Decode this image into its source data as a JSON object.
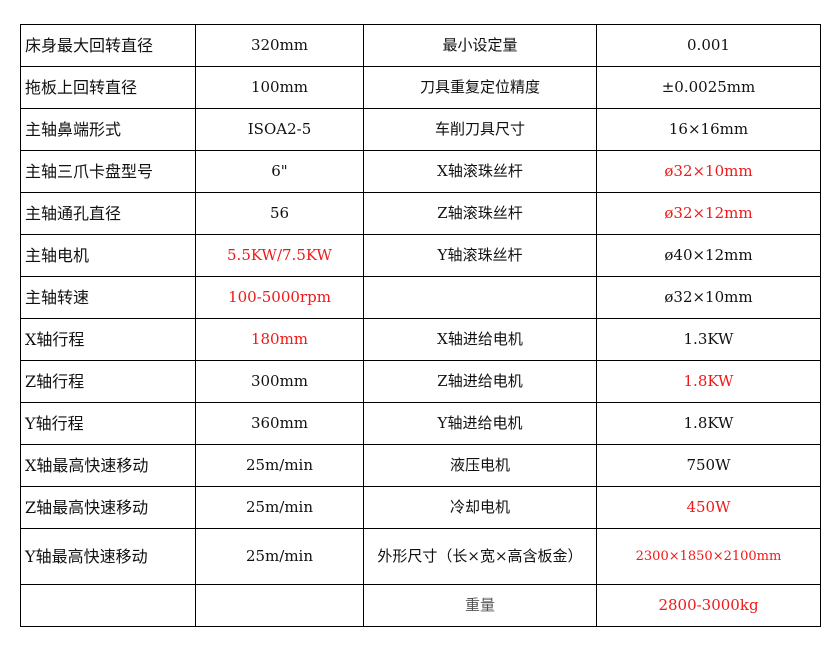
{
  "colors": {
    "highlight": "#f01818",
    "text": "#111111"
  },
  "rows": [
    {
      "c": [
        "床身最大回转直径",
        "320mm",
        "最小设定量",
        "0.001"
      ],
      "red": []
    },
    {
      "c": [
        "拖板上回转直径",
        "100mm",
        "刀具重复定位精度",
        "±0.0025mm"
      ],
      "red": []
    },
    {
      "c": [
        "主轴鼻端形式",
        "ISOA2-5",
        "车削刀具尺寸",
        "16×16mm"
      ],
      "red": []
    },
    {
      "c": [
        "主轴三爪卡盘型号",
        "6\"",
        "X轴滚珠丝杆",
        "ø32×10mm"
      ],
      "red": [
        3
      ]
    },
    {
      "c": [
        "主轴通孔直径",
        "56",
        "Z轴滚珠丝杆",
        "ø32×12mm"
      ],
      "red": [
        3
      ]
    },
    {
      "c": [
        "主轴电机",
        "5.5KW/7.5KW",
        "Y轴滚珠丝杆",
        "ø40×12mm"
      ],
      "red": [
        1
      ]
    },
    {
      "c": [
        "主轴转速",
        "100-5000rpm",
        "",
        "ø32×10mm"
      ],
      "red": [
        1
      ]
    },
    {
      "c": [
        "X轴行程",
        "180mm",
        "X轴进给电机",
        "1.3KW"
      ],
      "red": [
        1
      ]
    },
    {
      "c": [
        "Z轴行程",
        "300mm",
        "Z轴进给电机",
        "1.8KW"
      ],
      "red": [
        3
      ]
    },
    {
      "c": [
        "Y轴行程",
        "360mm",
        "Y轴进给电机",
        "1.8KW"
      ],
      "red": []
    },
    {
      "c": [
        "X轴最高快速移动",
        "25m/min",
        "液压电机",
        "750W"
      ],
      "red": []
    },
    {
      "c": [
        "Z轴最高快速移动",
        "25m/min",
        "冷却电机",
        "450W"
      ],
      "red": [
        3
      ]
    },
    {
      "c": [
        "Y轴最高快速移动",
        "25m/min",
        "外形尺寸（长×宽×高含板金）",
        "2300×1850×2100mm"
      ],
      "red": [
        3
      ]
    },
    {
      "c": [
        "",
        "",
        "重量",
        "2800-3000kg"
      ],
      "red": [
        3
      ]
    }
  ]
}
